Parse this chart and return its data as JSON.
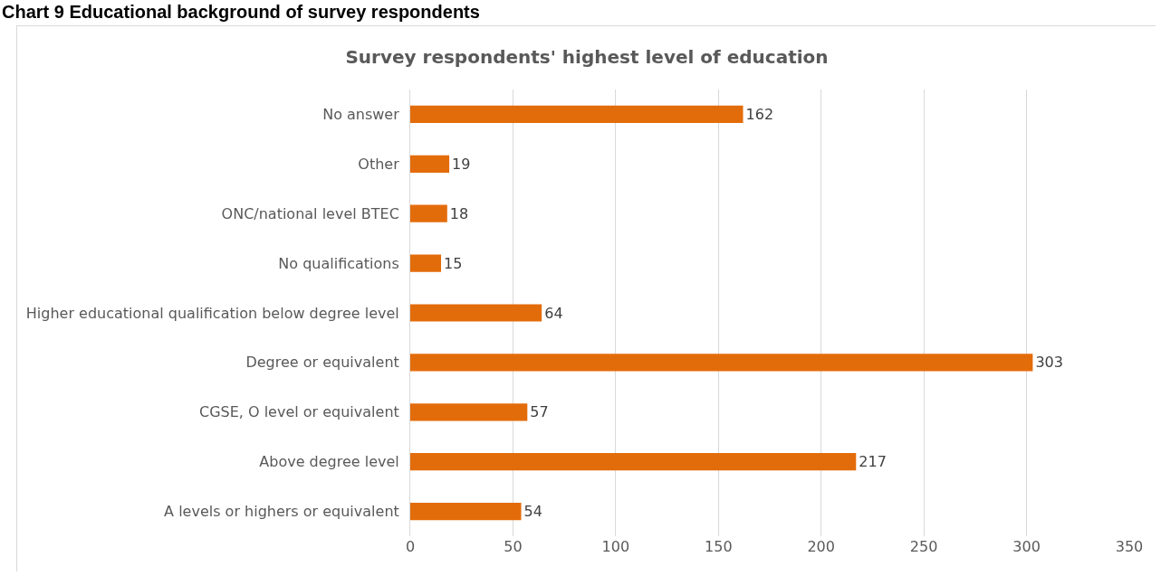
{
  "chart_data": {
    "type": "bar",
    "orientation": "horizontal",
    "title": "Chart 9 Educational background of survey respondents",
    "subtitle": "Survey respondents' highest level of education",
    "categories": [
      "No answer",
      "Other",
      "ONC/national level BTEC",
      "No qualifications",
      "Higher educational qualification below degree level",
      "Degree or equivalent",
      "CGSE, O level or equivalent",
      "Above degree level",
      "A levels or highers or equivalent"
    ],
    "values": [
      162,
      19,
      18,
      15,
      64,
      303,
      57,
      217,
      54
    ],
    "color": "#e36c0a",
    "xlim": [
      0,
      350
    ],
    "xticks": [
      0,
      50,
      100,
      150,
      200,
      250,
      300,
      350
    ],
    "grid": "x",
    "data_labels": true
  }
}
